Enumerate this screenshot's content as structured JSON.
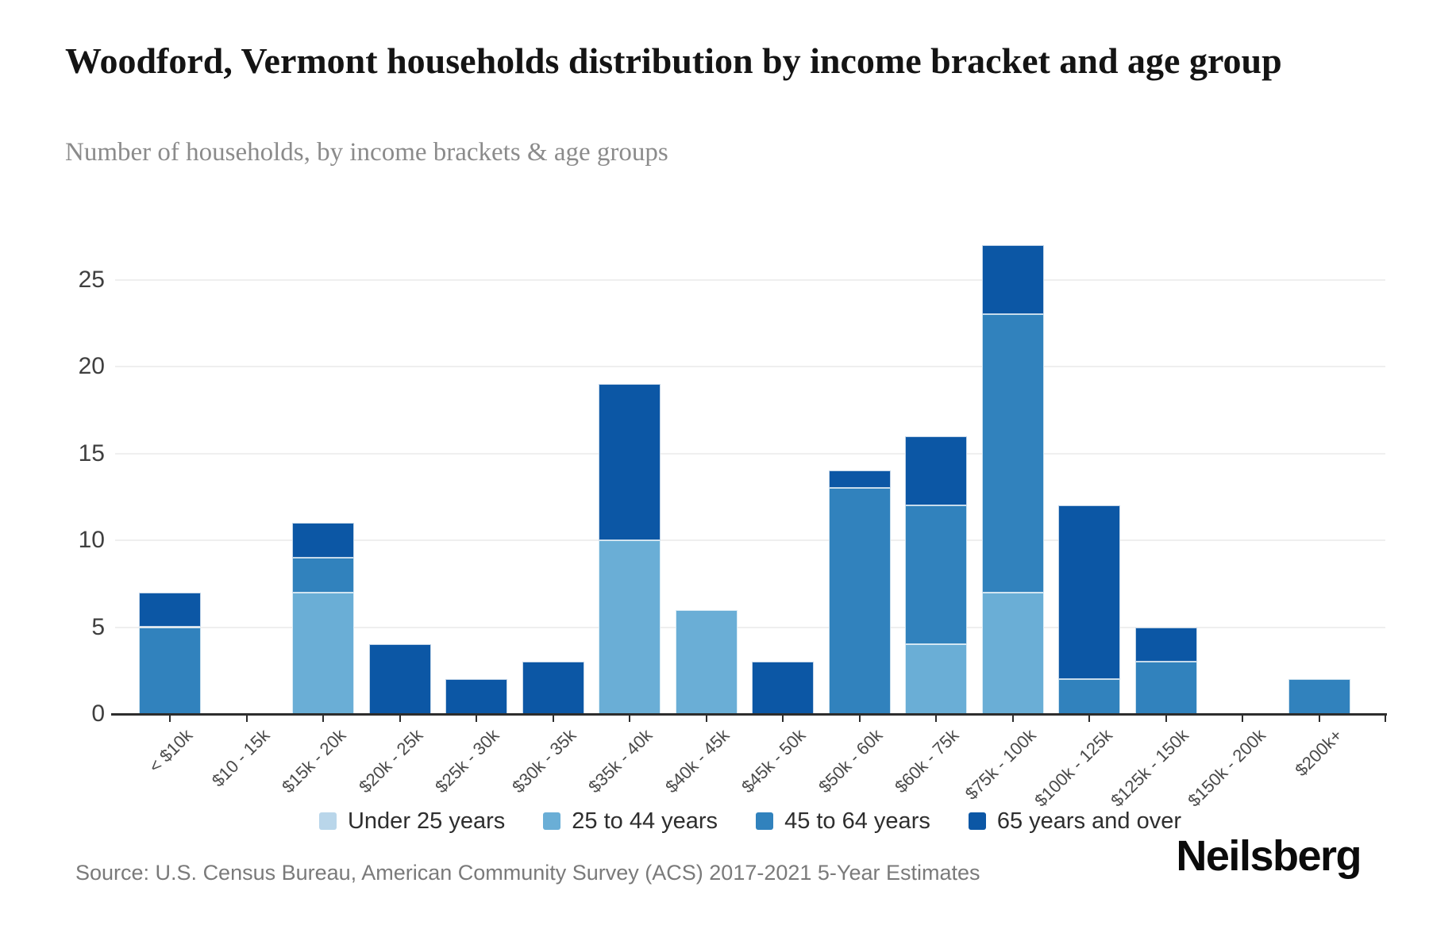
{
  "header": {
    "title": "Woodford, Vermont households distribution by income bracket and age group",
    "subtitle": "Number of households, by income brackets & age groups"
  },
  "chart_data": {
    "type": "bar",
    "stacked": true,
    "title": "Woodford, Vermont households distribution by income bracket and age group",
    "xlabel": "",
    "ylabel": "Number of households",
    "categories": [
      "< $10k",
      "$10 - 15k",
      "$15k - 20k",
      "$20k - 25k",
      "$25k - 30k",
      "$30k - 35k",
      "$35k - 40k",
      "$40k - 45k",
      "$45k - 50k",
      "$50k - 60k",
      "$60k - 75k",
      "$75k - 100k",
      "$100k - 125k",
      "$125k - 150k",
      "$150k - 200k",
      "$200k+"
    ],
    "series": [
      {
        "name": "Under 25 years",
        "color": "#b9d6ea",
        "values": [
          0,
          0,
          0,
          0,
          0,
          0,
          0,
          0,
          0,
          0,
          0,
          0,
          0,
          0,
          0,
          0
        ]
      },
      {
        "name": "25 to 44 years",
        "color": "#6aaed6",
        "values": [
          0,
          0,
          7,
          0,
          0,
          0,
          10,
          6,
          0,
          0,
          4,
          7,
          0,
          0,
          0,
          0
        ]
      },
      {
        "name": "45 to 64 years",
        "color": "#3182bd",
        "values": [
          5,
          0,
          2,
          0,
          0,
          0,
          0,
          0,
          0,
          13,
          8,
          16,
          2,
          3,
          0,
          2
        ]
      },
      {
        "name": "65 years and over",
        "color": "#0c57a5",
        "values": [
          2,
          0,
          2,
          4,
          2,
          3,
          9,
          0,
          3,
          1,
          4,
          4,
          10,
          2,
          0,
          0
        ]
      }
    ],
    "totals": [
      7,
      0,
      11,
      4,
      2,
      3,
      19,
      6,
      3,
      14,
      16,
      27,
      12,
      5,
      0,
      2
    ],
    "y_ticks": [
      0,
      5,
      10,
      15,
      20,
      25
    ],
    "ylim": [
      0,
      27.5
    ],
    "grid": "horizontal",
    "legend_position": "bottom"
  },
  "footer": {
    "source": "Source: U.S. Census Bureau, American Community Survey (ACS) 2017-2021 5-Year Estimates",
    "logo": "Neilsberg"
  },
  "colors": {
    "gridline": "#efefef",
    "axis": "#2d2d2d",
    "title_text": "#141414",
    "subtitle_text": "#8b8b8b",
    "source_text": "#7a7a7a"
  }
}
